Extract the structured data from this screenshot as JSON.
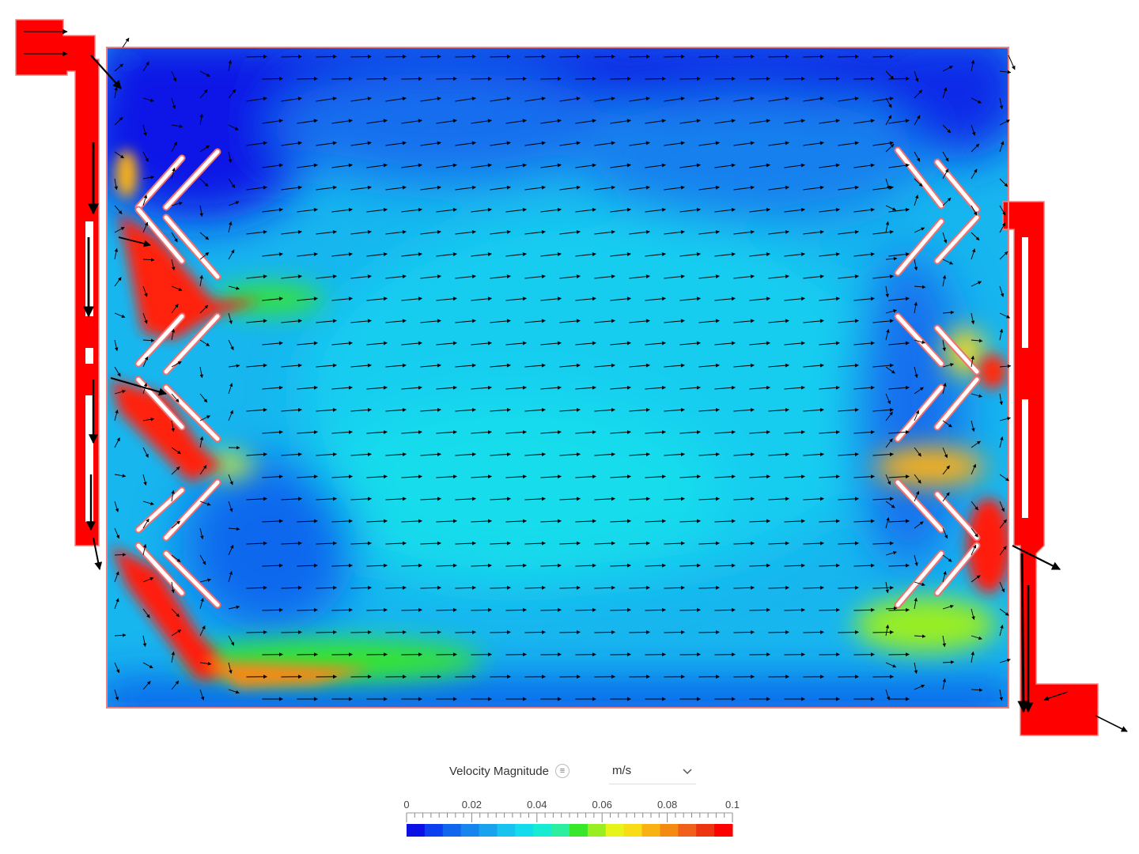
{
  "legend": {
    "title": "Velocity Magnitude",
    "info_icon": "list-info-icon",
    "unit": "m/s",
    "unit_dropdown_icon": "chevron-down-icon",
    "ticks": [
      "0",
      "0.02",
      "0.04",
      "0.06",
      "0.08",
      "0.1"
    ],
    "scale_min": 0,
    "scale_max": 0.1,
    "colormap": [
      "#0a10e6",
      "#0c3ff0",
      "#1166ee",
      "#1685ee",
      "#1aa2ee",
      "#19c3f0",
      "#14dcec",
      "#17ecd2",
      "#2bef9f",
      "#38e62a",
      "#99ee22",
      "#e6f41a",
      "#f8dc16",
      "#f9b214",
      "#f48a12",
      "#f0601a",
      "#ee3311",
      "#ff0000"
    ]
  },
  "viewport": {
    "domain_outline_color": "#f08080",
    "fluid_base_color": "#1aa2ee",
    "high_velocity_color": "#ff0000",
    "vector_color": "#000000"
  }
}
